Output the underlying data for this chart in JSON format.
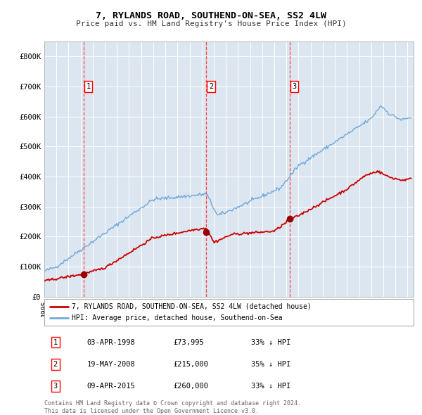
{
  "title": "7, RYLANDS ROAD, SOUTHEND-ON-SEA, SS2 4LW",
  "subtitle": "Price paid vs. HM Land Registry's House Price Index (HPI)",
  "background_color": "#dce6f0",
  "plot_bg_color": "#dce6f0",
  "fig_bg_color": "#ffffff",
  "ylim": [
    0,
    850000
  ],
  "yticks": [
    0,
    100000,
    200000,
    300000,
    400000,
    500000,
    600000,
    700000,
    800000
  ],
  "ytick_labels": [
    "£0",
    "£100K",
    "£200K",
    "£300K",
    "£400K",
    "£500K",
    "£600K",
    "£700K",
    "£800K"
  ],
  "hpi_color": "#6fa8dc",
  "price_color": "#cc0000",
  "marker_color": "#990000",
  "vline_color": "#ff4444",
  "sale_dates": [
    1998.25,
    2008.38,
    2015.27
  ],
  "sale_prices": [
    73995,
    215000,
    260000
  ],
  "sale_labels": [
    "1",
    "2",
    "3"
  ],
  "legend_price_label": "7, RYLANDS ROAD, SOUTHEND-ON-SEA, SS2 4LW (detached house)",
  "legend_hpi_label": "HPI: Average price, detached house, Southend-on-Sea",
  "table_data": [
    [
      "1",
      "03-APR-1998",
      "£73,995",
      "33% ↓ HPI"
    ],
    [
      "2",
      "19-MAY-2008",
      "£215,000",
      "35% ↓ HPI"
    ],
    [
      "3",
      "09-APR-2015",
      "£260,000",
      "33% ↓ HPI"
    ]
  ],
  "footnote": "Contains HM Land Registry data © Crown copyright and database right 2024.\nThis data is licensed under the Open Government Licence v3.0.",
  "xmin": 1995.0,
  "xmax": 2025.5
}
